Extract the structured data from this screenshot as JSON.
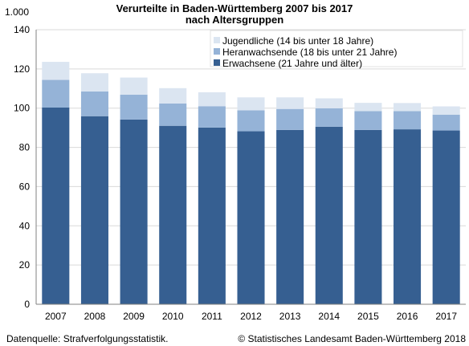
{
  "chart_data": {
    "type": "bar",
    "stacked": true,
    "title": "Verurteilte in Baden-Württemberg 2007 bis 2017",
    "subtitle": "nach Altersgruppen",
    "unit_label": "1.000",
    "categories": [
      "2007",
      "2008",
      "2009",
      "2010",
      "2011",
      "2012",
      "2013",
      "2014",
      "2015",
      "2016",
      "2017"
    ],
    "series": [
      {
        "name": "Erwachsene (21 Jahre und älter)",
        "color": "#365f91",
        "values": [
          100.3,
          95.9,
          94.2,
          91.0,
          90.1,
          88.2,
          88.9,
          90.5,
          88.9,
          89.2,
          88.6
        ]
      },
      {
        "name": "Heranwachsende (18 bis unter 21 Jahre)",
        "color": "#95b3d7",
        "values": [
          14.1,
          12.6,
          12.7,
          11.4,
          10.9,
          10.7,
          10.7,
          9.4,
          9.6,
          9.3,
          8.1
        ]
      },
      {
        "name": "Jugendliche (14 bis unter 18 Jahre)",
        "color": "#dbe5f1",
        "values": [
          9.2,
          9.3,
          8.7,
          7.8,
          7.1,
          6.6,
          5.9,
          5.1,
          4.2,
          4.1,
          4.2
        ]
      }
    ],
    "legend_order": [
      2,
      1,
      0
    ],
    "legend_position": "top-right",
    "ylim": [
      0,
      140
    ],
    "yticks": [
      0,
      20,
      40,
      60,
      80,
      100,
      120,
      140
    ],
    "grid": true
  },
  "footer": {
    "source": "Datenquelle: Strafverfolgungsstatistik.",
    "copyright": "© Statistisches Landesamt Baden-Württemberg 2018"
  }
}
